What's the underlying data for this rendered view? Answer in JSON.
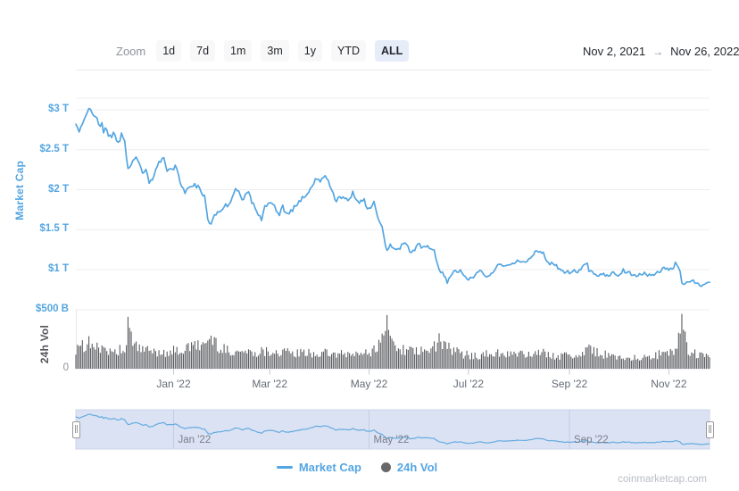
{
  "toolbar": {
    "zoom_label": "Zoom",
    "buttons": [
      "1d",
      "7d",
      "1m",
      "3m",
      "1y",
      "YTD",
      "ALL"
    ],
    "active_button": "ALL",
    "date_from": "Nov 2, 2021",
    "date_arrow": "→",
    "date_to": "Nov 26, 2022"
  },
  "watermark": "coinmarketcap.com",
  "colors": {
    "line_blue": "#54a6e2",
    "nav_line_blue": "#64abe0",
    "axis_label_blue": "#54a6e2",
    "volume_bar_gray": "#5a5b5f",
    "legend_dot_gray": "#686868",
    "grid_gray": "#ededed",
    "axis_base_gray": "#e2e5eb",
    "tick_mark_gray": "#c3c8d2",
    "nav_bg": "#dbe2f3",
    "nav_border": "#ccd4e8",
    "nav_grid": "#c3cce6",
    "active_button_bg": "#e7ecf9",
    "button_bg": "#f8f8f8"
  },
  "chart_data": {
    "type": "line+bar",
    "x_range": [
      "2021-11-02",
      "2022-11-26"
    ],
    "grid": true,
    "legend_position": "bottom-center",
    "y_axis": {
      "title": "Market Cap",
      "unit": "$T",
      "range_T": [
        0.6,
        3.15
      ],
      "ticks": [
        {
          "label": "$3 T",
          "v": 3.0
        },
        {
          "label": "$2.5 T",
          "v": 2.5
        },
        {
          "label": "$2 T",
          "v": 2.0
        },
        {
          "label": "$1.5 T",
          "v": 1.5
        },
        {
          "label": "$1 T",
          "v": 1.0
        }
      ]
    },
    "vol_axis": {
      "title": "24h Vol",
      "unit": "$B",
      "range_B": [
        0,
        500
      ],
      "ticks": [
        {
          "label": "$500 B",
          "v": 500
        },
        {
          "label": "0",
          "v": 0,
          "gray": true
        }
      ]
    },
    "x_ticks": [
      {
        "label": "Jan '22",
        "date": "2022-01-01"
      },
      {
        "label": "Mar '22",
        "date": "2022-03-01"
      },
      {
        "label": "May '22",
        "date": "2022-05-01"
      },
      {
        "label": "Jul '22",
        "date": "2022-07-01"
      },
      {
        "label": "Sep '22",
        "date": "2022-09-01"
      },
      {
        "label": "Nov '22",
        "date": "2022-11-01"
      }
    ],
    "nav_ticks": [
      {
        "label": "Jan '22",
        "date": "2022-01-01"
      },
      {
        "label": "May '22",
        "date": "2022-05-01"
      },
      {
        "label": "Sep '22",
        "date": "2022-09-01"
      }
    ],
    "series": [
      {
        "name": "Market Cap",
        "type": "line",
        "unit": "$T",
        "anchors": [
          [
            "2021-11-02",
            2.79
          ],
          [
            "2021-11-04",
            2.72
          ],
          [
            "2021-11-08",
            2.96
          ],
          [
            "2021-11-10",
            3.05
          ],
          [
            "2021-11-12",
            2.92
          ],
          [
            "2021-11-14",
            2.95
          ],
          [
            "2021-11-16",
            2.8
          ],
          [
            "2021-11-18",
            2.85
          ],
          [
            "2021-11-19",
            2.72
          ],
          [
            "2021-11-21",
            2.76
          ],
          [
            "2021-11-23",
            2.65
          ],
          [
            "2021-11-25",
            2.72
          ],
          [
            "2021-11-28",
            2.58
          ],
          [
            "2021-11-30",
            2.68
          ],
          [
            "2021-12-02",
            2.6
          ],
          [
            "2021-12-04",
            2.28
          ],
          [
            "2021-12-06",
            2.33
          ],
          [
            "2021-12-09",
            2.42
          ],
          [
            "2021-12-11",
            2.32
          ],
          [
            "2021-12-13",
            2.18
          ],
          [
            "2021-12-15",
            2.24
          ],
          [
            "2021-12-17",
            2.1
          ],
          [
            "2021-12-20",
            2.18
          ],
          [
            "2021-12-23",
            2.32
          ],
          [
            "2021-12-26",
            2.38
          ],
          [
            "2021-12-28",
            2.24
          ],
          [
            "2021-12-31",
            2.23
          ],
          [
            "2022-01-02",
            2.28
          ],
          [
            "2022-01-05",
            2.12
          ],
          [
            "2022-01-08",
            1.95
          ],
          [
            "2022-01-10",
            2.0
          ],
          [
            "2022-01-13",
            2.07
          ],
          [
            "2022-01-16",
            2.03
          ],
          [
            "2022-01-20",
            1.92
          ],
          [
            "2022-01-22",
            1.62
          ],
          [
            "2022-01-24",
            1.57
          ],
          [
            "2022-01-26",
            1.7
          ],
          [
            "2022-01-29",
            1.73
          ],
          [
            "2022-02-01",
            1.8
          ],
          [
            "2022-02-04",
            1.82
          ],
          [
            "2022-02-08",
            2.0
          ],
          [
            "2022-02-10",
            1.98
          ],
          [
            "2022-02-12",
            1.88
          ],
          [
            "2022-02-16",
            1.99
          ],
          [
            "2022-02-18",
            1.85
          ],
          [
            "2022-02-21",
            1.72
          ],
          [
            "2022-02-24",
            1.62
          ],
          [
            "2022-02-26",
            1.78
          ],
          [
            "2022-03-01",
            1.87
          ],
          [
            "2022-03-04",
            1.78
          ],
          [
            "2022-03-07",
            1.68
          ],
          [
            "2022-03-09",
            1.78
          ],
          [
            "2022-03-11",
            1.7
          ],
          [
            "2022-03-14",
            1.72
          ],
          [
            "2022-03-18",
            1.84
          ],
          [
            "2022-03-22",
            1.9
          ],
          [
            "2022-03-25",
            1.98
          ],
          [
            "2022-03-29",
            2.14
          ],
          [
            "2022-04-01",
            2.12
          ],
          [
            "2022-04-05",
            2.16
          ],
          [
            "2022-04-07",
            2.02
          ],
          [
            "2022-04-11",
            1.86
          ],
          [
            "2022-04-14",
            1.92
          ],
          [
            "2022-04-18",
            1.88
          ],
          [
            "2022-04-21",
            1.95
          ],
          [
            "2022-04-25",
            1.82
          ],
          [
            "2022-04-28",
            1.88
          ],
          [
            "2022-04-30",
            1.73
          ],
          [
            "2022-05-04",
            1.83
          ],
          [
            "2022-05-06",
            1.68
          ],
          [
            "2022-05-09",
            1.52
          ],
          [
            "2022-05-11",
            1.32
          ],
          [
            "2022-05-12",
            1.22
          ],
          [
            "2022-05-14",
            1.3
          ],
          [
            "2022-05-16",
            1.28
          ],
          [
            "2022-05-19",
            1.26
          ],
          [
            "2022-05-23",
            1.33
          ],
          [
            "2022-05-27",
            1.2
          ],
          [
            "2022-05-31",
            1.32
          ],
          [
            "2022-06-03",
            1.28
          ],
          [
            "2022-06-07",
            1.28
          ],
          [
            "2022-06-10",
            1.22
          ],
          [
            "2022-06-13",
            1.02
          ],
          [
            "2022-06-15",
            0.95
          ],
          [
            "2022-06-18",
            0.85
          ],
          [
            "2022-06-21",
            0.96
          ],
          [
            "2022-06-24",
            0.98
          ],
          [
            "2022-06-26",
            1.0
          ],
          [
            "2022-06-30",
            0.88
          ],
          [
            "2022-07-03",
            0.9
          ],
          [
            "2022-07-06",
            0.95
          ],
          [
            "2022-07-08",
            0.99
          ],
          [
            "2022-07-12",
            0.89
          ],
          [
            "2022-07-16",
            0.97
          ],
          [
            "2022-07-20",
            1.09
          ],
          [
            "2022-07-24",
            1.03
          ],
          [
            "2022-07-28",
            1.08
          ],
          [
            "2022-07-31",
            1.12
          ],
          [
            "2022-08-03",
            1.08
          ],
          [
            "2022-08-08",
            1.15
          ],
          [
            "2022-08-11",
            1.21
          ],
          [
            "2022-08-14",
            1.23
          ],
          [
            "2022-08-16",
            1.2
          ],
          [
            "2022-08-19",
            1.09
          ],
          [
            "2022-08-23",
            1.06
          ],
          [
            "2022-08-26",
            1.0
          ],
          [
            "2022-08-28",
            0.97
          ],
          [
            "2022-09-01",
            0.97
          ],
          [
            "2022-09-04",
            1.0
          ],
          [
            "2022-09-06",
            0.95
          ],
          [
            "2022-09-09",
            1.03
          ],
          [
            "2022-09-12",
            1.07
          ],
          [
            "2022-09-13",
            0.98
          ],
          [
            "2022-09-16",
            0.96
          ],
          [
            "2022-09-19",
            0.92
          ],
          [
            "2022-09-22",
            0.95
          ],
          [
            "2022-09-25",
            0.92
          ],
          [
            "2022-09-28",
            0.96
          ],
          [
            "2022-10-01",
            0.94
          ],
          [
            "2022-10-04",
            0.99
          ],
          [
            "2022-10-08",
            0.96
          ],
          [
            "2022-10-11",
            0.92
          ],
          [
            "2022-10-14",
            0.94
          ],
          [
            "2022-10-18",
            0.95
          ],
          [
            "2022-10-21",
            0.91
          ],
          [
            "2022-10-25",
            0.97
          ],
          [
            "2022-10-29",
            1.01
          ],
          [
            "2022-11-01",
            1.0
          ],
          [
            "2022-11-04",
            1.02
          ],
          [
            "2022-11-05",
            1.07
          ],
          [
            "2022-11-06",
            1.08
          ],
          [
            "2022-11-08",
            0.96
          ],
          [
            "2022-11-09",
            0.85
          ],
          [
            "2022-11-10",
            0.81
          ],
          [
            "2022-11-12",
            0.85
          ],
          [
            "2022-11-14",
            0.83
          ],
          [
            "2022-11-16",
            0.86
          ],
          [
            "2022-11-19",
            0.82
          ],
          [
            "2022-11-21",
            0.78
          ],
          [
            "2022-11-23",
            0.83
          ],
          [
            "2022-11-26",
            0.84
          ]
        ]
      },
      {
        "name": "24h Vol",
        "type": "bar",
        "unit": "$B",
        "anchors": [
          [
            "2021-11-02",
            170
          ],
          [
            "2021-11-10",
            210
          ],
          [
            "2021-11-20",
            165
          ],
          [
            "2021-12-01",
            160
          ],
          [
            "2021-12-04",
            290
          ],
          [
            "2021-12-10",
            170
          ],
          [
            "2021-12-20",
            140
          ],
          [
            "2022-01-05",
            150
          ],
          [
            "2022-01-22",
            225
          ],
          [
            "2022-01-24",
            240
          ],
          [
            "2022-02-01",
            160
          ],
          [
            "2022-02-15",
            140
          ],
          [
            "2022-03-01",
            150
          ],
          [
            "2022-03-15",
            130
          ],
          [
            "2022-04-01",
            130
          ],
          [
            "2022-04-15",
            120
          ],
          [
            "2022-05-01",
            130
          ],
          [
            "2022-05-09",
            240
          ],
          [
            "2022-05-12",
            320
          ],
          [
            "2022-05-16",
            200
          ],
          [
            "2022-05-25",
            150
          ],
          [
            "2022-06-06",
            140
          ],
          [
            "2022-06-13",
            230
          ],
          [
            "2022-06-16",
            200
          ],
          [
            "2022-06-25",
            130
          ],
          [
            "2022-07-05",
            110
          ],
          [
            "2022-07-20",
            130
          ],
          [
            "2022-08-01",
            120
          ],
          [
            "2022-08-15",
            130
          ],
          [
            "2022-08-25",
            110
          ],
          [
            "2022-09-06",
            110
          ],
          [
            "2022-09-13",
            165
          ],
          [
            "2022-09-25",
            110
          ],
          [
            "2022-10-05",
            100
          ],
          [
            "2022-10-15",
            90
          ],
          [
            "2022-10-26",
            120
          ],
          [
            "2022-11-05",
            140
          ],
          [
            "2022-11-09",
            400
          ],
          [
            "2022-11-10",
            320
          ],
          [
            "2022-11-12",
            180
          ],
          [
            "2022-11-16",
            130
          ],
          [
            "2022-11-22",
            110
          ],
          [
            "2022-11-26",
            95
          ]
        ],
        "spikes": [
          [
            "2021-12-04",
            440
          ],
          [
            "2022-01-24",
            280
          ],
          [
            "2022-05-12",
            455
          ],
          [
            "2022-06-13",
            300
          ],
          [
            "2022-09-13",
            205
          ],
          [
            "2022-11-09",
            465
          ],
          [
            "2022-11-10",
            330
          ]
        ]
      }
    ]
  }
}
